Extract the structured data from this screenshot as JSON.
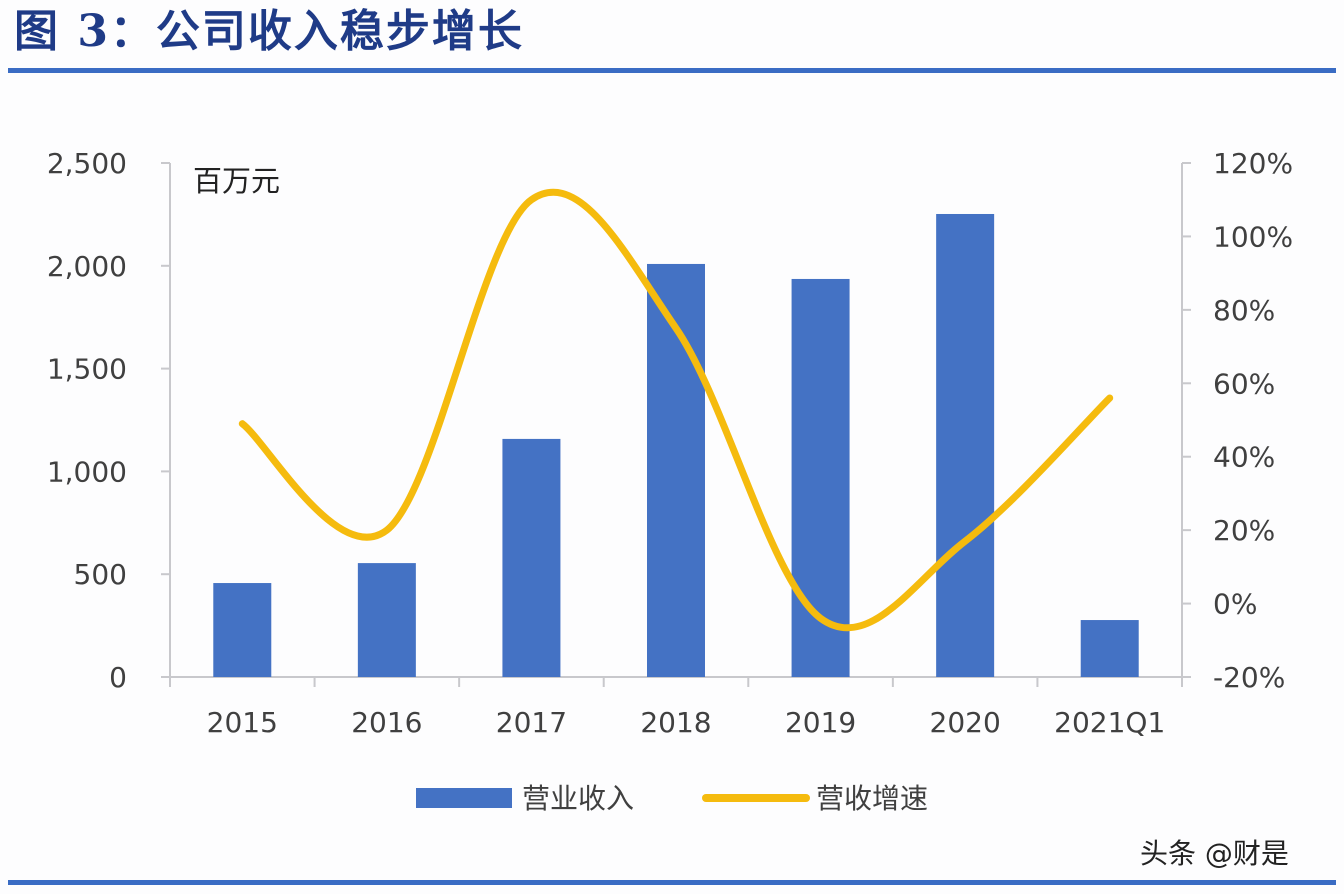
{
  "figure": {
    "title": "图 3：公司收入稳步增长",
    "watermark": "头条 @财是"
  },
  "colors": {
    "title": "#1f3b87",
    "rule": "#3a6cc4",
    "bar": "#4472c4",
    "line": "#f5bb0e",
    "axis": "#c8c8cc",
    "text": "#404040"
  },
  "chart_data": {
    "type": "bar+line",
    "title": "图 3：公司收入稳步增长",
    "unit_label": "百万元",
    "categories": [
      "2015",
      "2016",
      "2017",
      "2018",
      "2019",
      "2020",
      "2021Q1"
    ],
    "series": [
      {
        "name": "营业收入",
        "type": "bar",
        "axis": "left",
        "values": [
          457,
          554,
          1158,
          2009,
          1936,
          2252,
          277
        ]
      },
      {
        "name": "营收增速",
        "type": "line",
        "axis": "right",
        "smooth": true,
        "values": [
          49,
          20,
          110,
          75,
          -4,
          17,
          56
        ]
      }
    ],
    "left_axis": {
      "min": 0,
      "max": 2500,
      "step": 500,
      "ticks": [
        "0",
        "500",
        "1,000",
        "1,500",
        "2,000",
        "2,500"
      ]
    },
    "right_axis": {
      "min": -20,
      "max": 120,
      "step": 20,
      "ticks": [
        "-20%",
        "0%",
        "20%",
        "40%",
        "60%",
        "80%",
        "100%",
        "120%"
      ]
    },
    "xlabel": "",
    "ylabel": "百万元",
    "grid": false,
    "legend_position": "bottom"
  }
}
